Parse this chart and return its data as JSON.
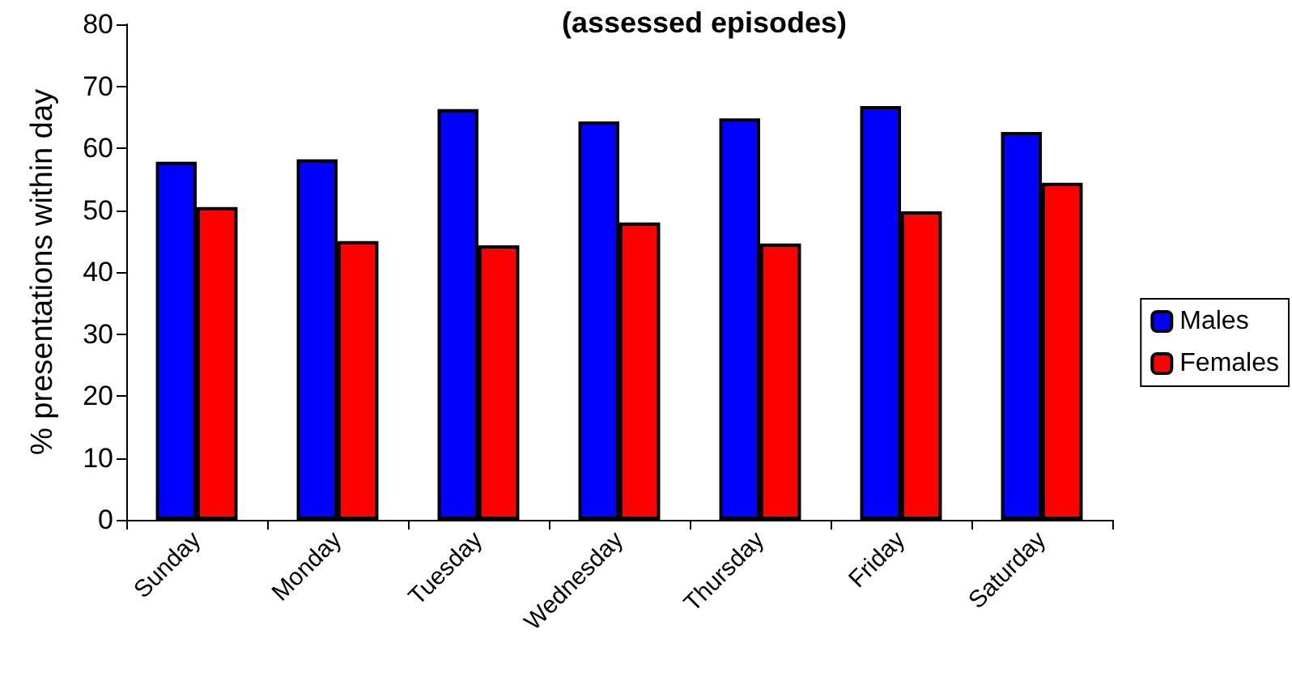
{
  "chart_data": {
    "type": "bar",
    "title": "(assessed episodes)",
    "ylabel": "% presentations within day",
    "categories": [
      "Sunday",
      "Monday",
      "Tuesday",
      "Wednesday",
      "Thursday",
      "Friday",
      "Saturday"
    ],
    "series": [
      {
        "name": "Males",
        "color": "#0000ff",
        "values": [
          57.8,
          58.2,
          66.3,
          64.3,
          64.8,
          66.8,
          62.6
        ]
      },
      {
        "name": "Females",
        "color": "#ff0000",
        "values": [
          50.5,
          45,
          44.3,
          48,
          44.6,
          49.8,
          54.4
        ]
      }
    ],
    "ylim": [
      0,
      80
    ],
    "yticks": [
      0,
      10,
      20,
      30,
      40,
      50,
      60,
      70,
      80
    ],
    "grid": false,
    "legend": "right"
  }
}
